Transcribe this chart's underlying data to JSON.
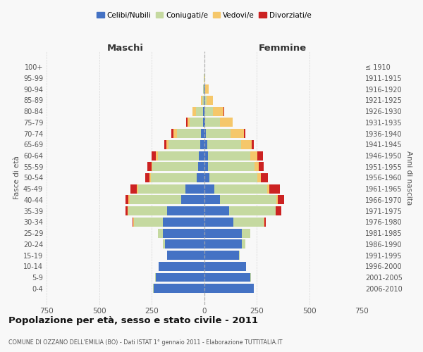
{
  "age_groups": [
    "0-4",
    "5-9",
    "10-14",
    "15-19",
    "20-24",
    "25-29",
    "30-34",
    "35-39",
    "40-44",
    "45-49",
    "50-54",
    "55-59",
    "60-64",
    "65-69",
    "70-74",
    "75-79",
    "80-84",
    "85-89",
    "90-94",
    "95-99",
    "100+"
  ],
  "birth_years": [
    "2006-2010",
    "2001-2005",
    "1996-2000",
    "1991-1995",
    "1986-1990",
    "1981-1985",
    "1976-1980",
    "1971-1975",
    "1966-1970",
    "1961-1965",
    "1956-1960",
    "1951-1955",
    "1946-1950",
    "1941-1945",
    "1936-1940",
    "1931-1935",
    "1926-1930",
    "1921-1925",
    "1916-1920",
    "1911-1915",
    "≤ 1910"
  ],
  "males": {
    "celibi": [
      240,
      230,
      215,
      175,
      185,
      195,
      195,
      175,
      110,
      90,
      35,
      30,
      25,
      20,
      15,
      5,
      5,
      2,
      1,
      0,
      0
    ],
    "coniugati": [
      2,
      2,
      1,
      2,
      10,
      25,
      140,
      185,
      245,
      225,
      220,
      215,
      195,
      150,
      115,
      65,
      35,
      8,
      3,
      1,
      0
    ],
    "vedovi": [
      0,
      0,
      0,
      0,
      0,
      0,
      2,
      5,
      5,
      5,
      5,
      5,
      10,
      10,
      15,
      10,
      15,
      5,
      2,
      0,
      0
    ],
    "divorziati": [
      0,
      0,
      0,
      0,
      0,
      0,
      2,
      10,
      15,
      30,
      20,
      20,
      20,
      10,
      10,
      5,
      1,
      1,
      0,
      0,
      0
    ]
  },
  "females": {
    "nubili": [
      235,
      220,
      200,
      165,
      180,
      180,
      140,
      120,
      75,
      50,
      25,
      20,
      20,
      15,
      10,
      5,
      3,
      2,
      1,
      0,
      0
    ],
    "coniugate": [
      2,
      2,
      1,
      3,
      15,
      40,
      145,
      220,
      270,
      250,
      230,
      220,
      200,
      160,
      115,
      70,
      40,
      10,
      5,
      2,
      0
    ],
    "vedove": [
      0,
      0,
      0,
      0,
      0,
      0,
      2,
      2,
      5,
      10,
      15,
      20,
      35,
      50,
      65,
      60,
      50,
      30,
      15,
      2,
      0
    ],
    "divorziate": [
      0,
      0,
      0,
      0,
      0,
      1,
      5,
      25,
      30,
      50,
      35,
      25,
      25,
      10,
      5,
      2,
      2,
      1,
      0,
      0,
      0
    ]
  },
  "colors": {
    "celibi_nubili": "#4472C4",
    "coniugati": "#C5D9A0",
    "vedovi": "#F5C76A",
    "divorziati": "#CC2222"
  },
  "title": "Popolazione per età, sesso e stato civile - 2011",
  "subtitle": "COMUNE DI OZZANO DELL'EMILIA (BO) - Dati ISTAT 1° gennaio 2011 - Elaborazione TUTTITALIA.IT",
  "xlabel_left": "Maschi",
  "xlabel_right": "Femmine",
  "ylabel_left": "Fasce di età",
  "ylabel_right": "Anni di nascita",
  "xlim": 750,
  "background": "#f8f8f8",
  "grid_color": "#cccccc"
}
